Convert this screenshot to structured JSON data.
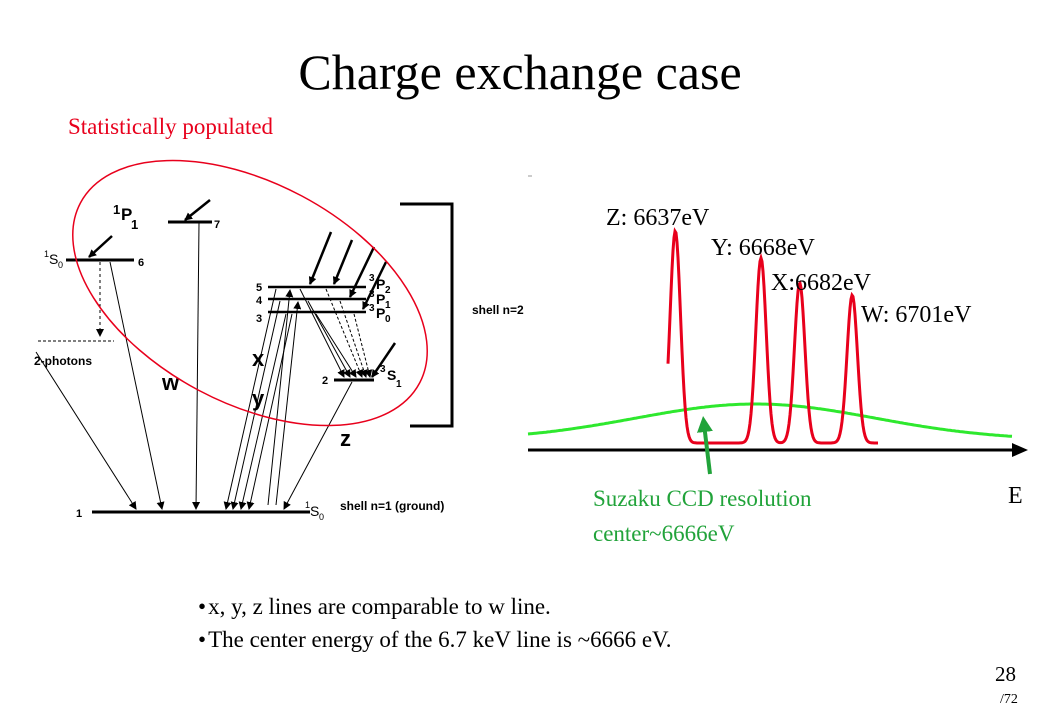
{
  "slide": {
    "title": "Charge exchange case",
    "subtitle": "Statistically populated",
    "page_number": "28",
    "page_total": "/72"
  },
  "level_diagram": {
    "levels": {
      "one_p1": "P",
      "one_p1_pre": "1",
      "one_p1_sub": "1",
      "one_p1_num": "7",
      "one_s0_pre": "1",
      "one_s0": "S",
      "one_s0_sub": "0",
      "one_s0_num": "6",
      "three_p2": "P",
      "three_p2_sub": "2",
      "three_p1": "P",
      "three_p1_sub": "1",
      "three_p0": "P",
      "three_p0_sub": "0",
      "triplet_pre": "3",
      "n5": "5",
      "n4": "4",
      "n3": "3",
      "three_s1": "S",
      "three_s1_sub": "1",
      "n2": "2",
      "ground_num": "1",
      "ground_pre": "1",
      "ground": "S",
      "ground_sub": "0"
    },
    "two_photons": "2-photons",
    "shell_n2": "shell n=2",
    "shell_n1": "shell n=1 (ground)",
    "line_w": "w",
    "line_x": "x",
    "line_y": "y",
    "line_z": "z"
  },
  "spectrum": {
    "peaks": [
      {
        "label": "Z: 6637eV",
        "energy_ev": 6637
      },
      {
        "label": "Y: 6668eV",
        "energy_ev": 6668
      },
      {
        "label": "X:6682eV",
        "energy_ev": 6682
      },
      {
        "label": "W: 6701eV",
        "energy_ev": 6701
      }
    ],
    "axis_label": "E",
    "resolution_label_1": "Suzaku CCD resolution",
    "resolution_label_2": "center~6666eV",
    "colors": {
      "lines": "#e8001c",
      "resolution": "#2ee82e",
      "arrow": "#21a33a"
    }
  },
  "bullets": [
    "x, y, z lines are comparable to w line.",
    "The center energy of the 6.7 keV line is ~6666 eV."
  ]
}
